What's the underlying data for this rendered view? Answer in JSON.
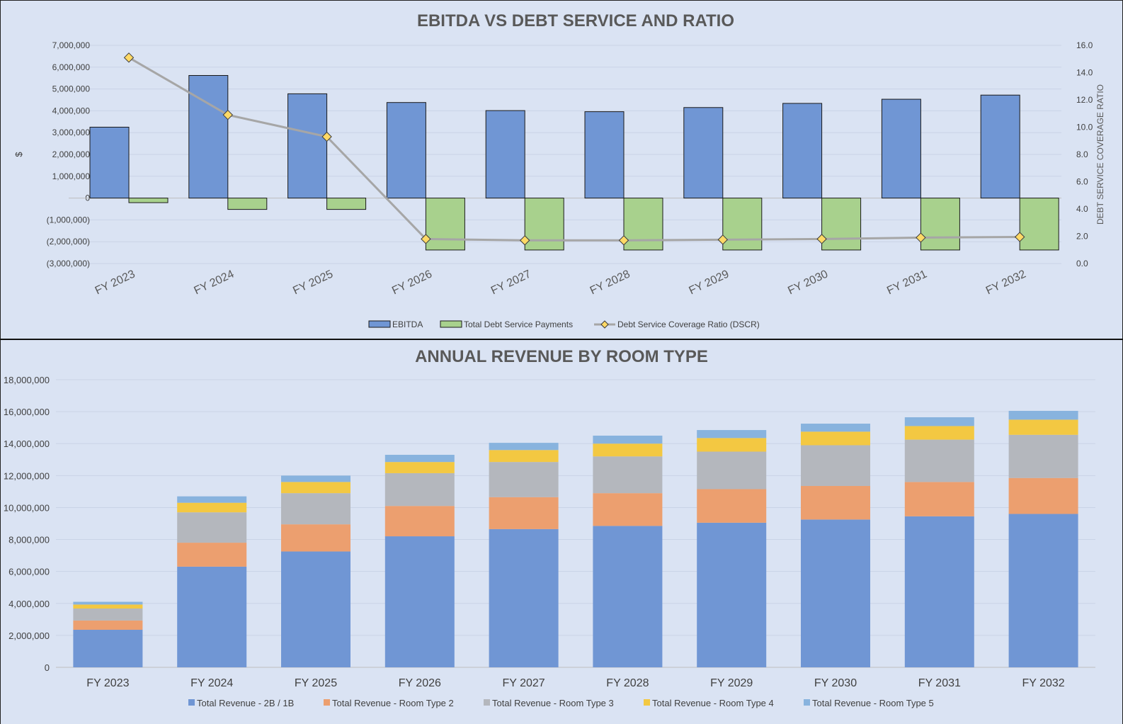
{
  "chart_data": [
    {
      "type": "bar",
      "title": "EBITDA VS DEBT SERVICE AND RATIO",
      "categories": [
        "FY 2023",
        "FY 2024",
        "FY 2025",
        "FY 2026",
        "FY 2027",
        "FY 2028",
        "FY 2029",
        "FY 2030",
        "FY 2031",
        "FY 2032"
      ],
      "ylabel": "$",
      "y2label": "DEBT SERVICE COVERAGE RATIO",
      "ylim": [
        -3000000,
        7000000
      ],
      "y2lim": [
        0,
        16
      ],
      "yticks": [
        "7,000,000",
        "6,000,000",
        "5,000,000",
        "4,000,000",
        "3,000,000",
        "2,000,000",
        "1,000,000",
        "0",
        "(1,000,000)",
        "(2,000,000)",
        "(3,000,000)"
      ],
      "y2ticks": [
        "16.0",
        "14.0",
        "12.0",
        "10.0",
        "8.0",
        "6.0",
        "4.0",
        "2.0",
        "0.0"
      ],
      "legend_position": "bottom",
      "series": [
        {
          "name": "EBITDA",
          "kind": "bar",
          "color": "#7096d4",
          "values": [
            3250000,
            5620000,
            4780000,
            4380000,
            4010000,
            3960000,
            4150000,
            4340000,
            4530000,
            4720000
          ]
        },
        {
          "name": "Total Debt Service Payments",
          "kind": "bar",
          "color": "#a8d18d",
          "values": [
            -210000,
            -520000,
            -520000,
            -2380000,
            -2380000,
            -2380000,
            -2380000,
            -2380000,
            -2380000,
            -2380000
          ]
        },
        {
          "name": "Debt Service Coverage Ratio (DSCR)",
          "kind": "line",
          "axis": "right",
          "color": "#a6a6a6",
          "marker_color": "#ffd966",
          "values": [
            15.1,
            10.9,
            9.3,
            1.8,
            1.7,
            1.7,
            1.75,
            1.8,
            1.9,
            1.95
          ]
        }
      ]
    },
    {
      "type": "bar",
      "stacked": true,
      "title": "ANNUAL REVENUE BY ROOM TYPE",
      "categories": [
        "FY 2023",
        "FY 2024",
        "FY 2025",
        "FY 2026",
        "FY 2027",
        "FY 2028",
        "FY 2029",
        "FY 2030",
        "FY 2031",
        "FY 2032"
      ],
      "ylim": [
        0,
        18000000
      ],
      "yticks": [
        "18,000,000",
        "16,000,000",
        "14,000,000",
        "12,000,000",
        "10,000,000",
        "8,000,000",
        "6,000,000",
        "4,000,000",
        "2,000,000",
        "0"
      ],
      "legend_position": "bottom",
      "series": [
        {
          "name": "Total Revenue - 2B / 1B",
          "color": "#7096d4",
          "values": [
            2350000,
            6300000,
            7250000,
            8200000,
            8650000,
            8850000,
            9050000,
            9250000,
            9450000,
            9600000
          ]
        },
        {
          "name": "Total Revenue - Room Type 2",
          "color": "#ec9f6f",
          "values": [
            580000,
            1500000,
            1700000,
            1900000,
            2000000,
            2050000,
            2100000,
            2100000,
            2150000,
            2250000
          ]
        },
        {
          "name": "Total Revenue - Room Type 3",
          "color": "#b4b7bd",
          "values": [
            750000,
            1900000,
            1950000,
            2050000,
            2200000,
            2300000,
            2350000,
            2550000,
            2650000,
            2700000
          ]
        },
        {
          "name": "Total Revenue - Room Type 4",
          "color": "#f3c842",
          "values": [
            250000,
            600000,
            700000,
            700000,
            750000,
            800000,
            850000,
            850000,
            850000,
            950000
          ]
        },
        {
          "name": "Total Revenue - Room Type 5",
          "color": "#88b3de",
          "values": [
            170000,
            400000,
            400000,
            450000,
            450000,
            500000,
            500000,
            500000,
            550000,
            550000
          ]
        }
      ]
    }
  ]
}
